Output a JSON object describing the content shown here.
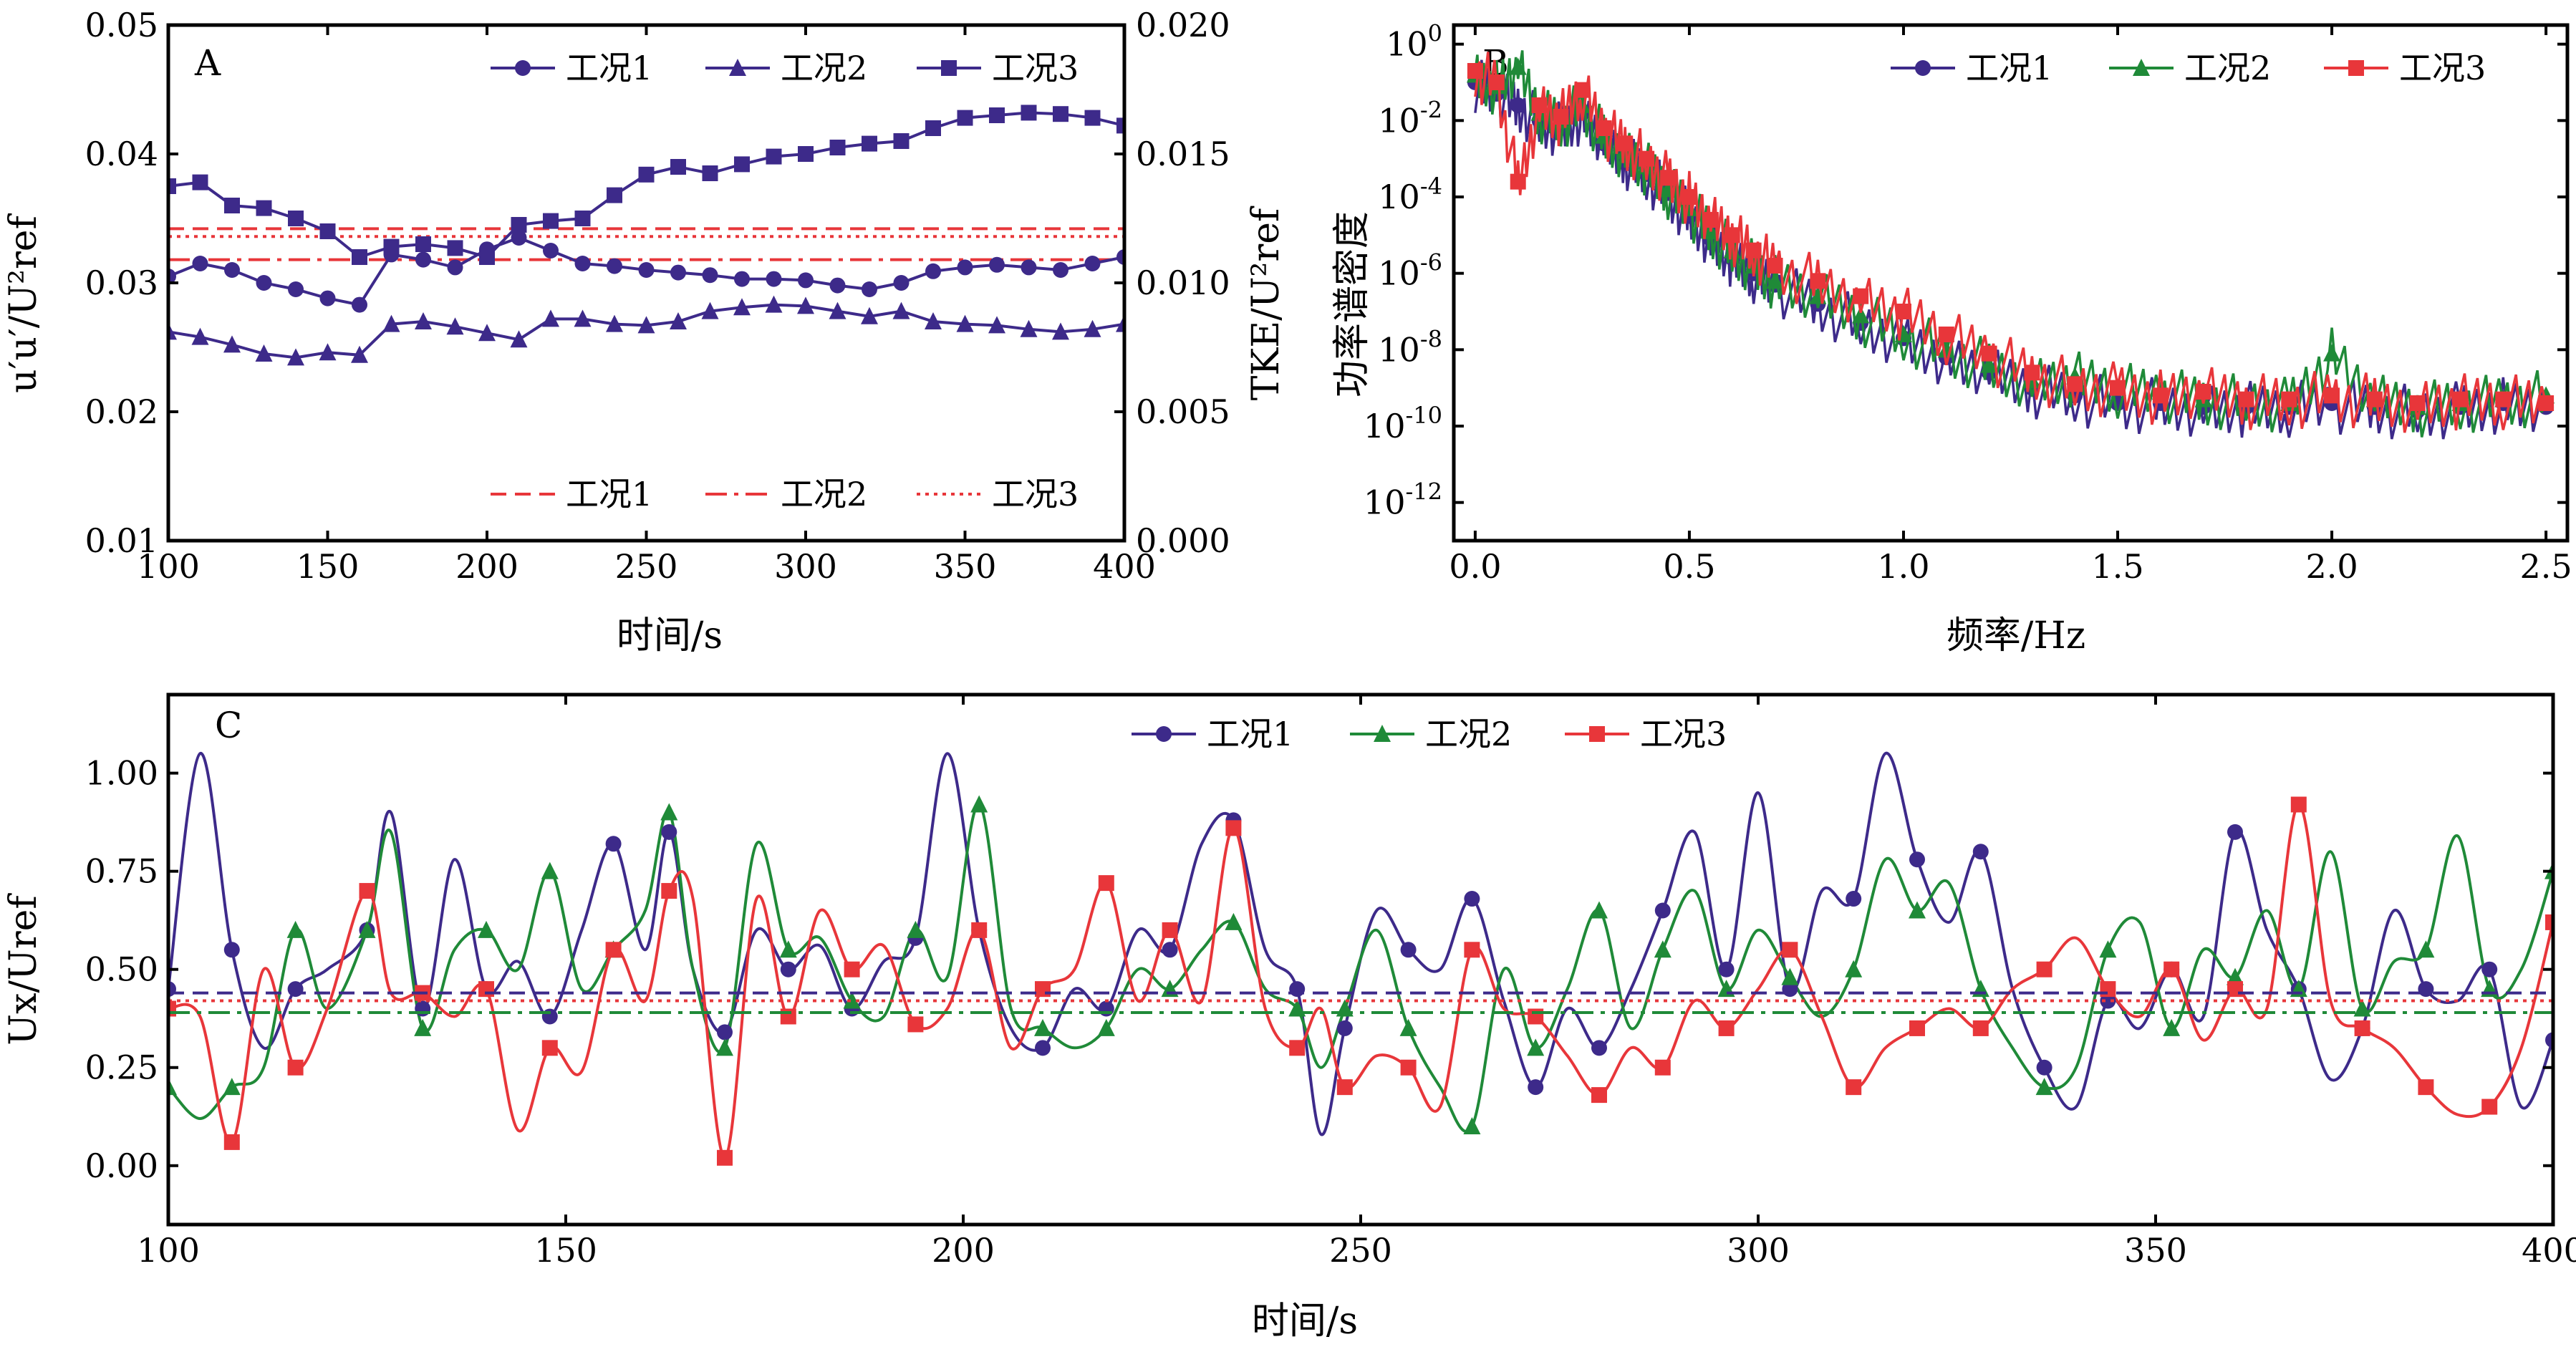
{
  "colors": {
    "case1": "#3d2a8a",
    "case2": "#1f8a38",
    "case3": "#e8363a",
    "ref": "#e8363a",
    "axis": "#000000"
  },
  "chart_data": [
    {
      "id": "A",
      "type": "line",
      "panel_letter": "A",
      "xlabel": "时间/s",
      "ylabel_left": "u′u′/U²ref",
      "ylabel_right": "TKE/U²ref",
      "xlim": [
        100,
        400
      ],
      "ylim_left": [
        0.01,
        0.05
      ],
      "ylim_right": [
        0.0,
        0.02
      ],
      "x_ticks": [
        "100",
        "150",
        "200",
        "250",
        "300",
        "350",
        "400"
      ],
      "y_left_ticks": [
        "0.01",
        "0.02",
        "0.03",
        "0.04",
        "0.05"
      ],
      "y_right_ticks": [
        "0.000",
        "0.005",
        "0.010",
        "0.015",
        "0.020"
      ],
      "legend_position": "top-right",
      "series": [
        {
          "name": "工况1",
          "marker": "circle",
          "axis": "left",
          "x": [
            100,
            110,
            120,
            130,
            140,
            150,
            160,
            170,
            180,
            190,
            200,
            210,
            220,
            230,
            240,
            250,
            260,
            270,
            280,
            290,
            300,
            310,
            320,
            330,
            340,
            350,
            360,
            370,
            380,
            390,
            400
          ],
          "y": [
            0.0305,
            0.0315,
            0.031,
            0.03,
            0.0295,
            0.0288,
            0.0283,
            0.0322,
            0.0318,
            0.0312,
            0.0326,
            0.0335,
            0.0325,
            0.0315,
            0.0313,
            0.031,
            0.0308,
            0.0306,
            0.0303,
            0.0303,
            0.0302,
            0.0298,
            0.0295,
            0.03,
            0.0309,
            0.0312,
            0.0314,
            0.0312,
            0.031,
            0.0315,
            0.032
          ]
        },
        {
          "name": "工况2",
          "marker": "triangle",
          "axis": "left",
          "x": [
            100,
            110,
            120,
            130,
            140,
            150,
            160,
            170,
            180,
            190,
            200,
            210,
            220,
            230,
            240,
            250,
            260,
            270,
            280,
            290,
            300,
            310,
            320,
            330,
            340,
            350,
            360,
            370,
            380,
            390,
            400
          ],
          "y": [
            0.0262,
            0.0258,
            0.0252,
            0.0245,
            0.0242,
            0.0246,
            0.0244,
            0.0268,
            0.027,
            0.0266,
            0.0261,
            0.0256,
            0.0272,
            0.0272,
            0.0268,
            0.0267,
            0.027,
            0.0278,
            0.0281,
            0.0283,
            0.0282,
            0.0278,
            0.0274,
            0.0278,
            0.027,
            0.0268,
            0.0267,
            0.0264,
            0.0262,
            0.0264,
            0.0268
          ]
        },
        {
          "name": "工况3",
          "marker": "square",
          "axis": "left",
          "x": [
            100,
            110,
            120,
            130,
            140,
            150,
            160,
            170,
            180,
            190,
            200,
            210,
            220,
            230,
            240,
            250,
            260,
            270,
            280,
            290,
            300,
            310,
            320,
            330,
            340,
            350,
            360,
            370,
            380,
            390,
            400
          ],
          "y": [
            0.0375,
            0.0378,
            0.036,
            0.0358,
            0.035,
            0.034,
            0.032,
            0.0328,
            0.033,
            0.0327,
            0.032,
            0.0345,
            0.0348,
            0.035,
            0.0368,
            0.0384,
            0.039,
            0.0385,
            0.0392,
            0.0398,
            0.04,
            0.0405,
            0.0408,
            0.041,
            0.042,
            0.0428,
            0.043,
            0.0432,
            0.0431,
            0.0428,
            0.0422
          ]
        }
      ],
      "ref_lines": [
        {
          "name": "工况1",
          "style": "dashed",
          "value_right": 0.0121
        },
        {
          "name": "工况2",
          "style": "dashdot",
          "value_right": 0.0109
        },
        {
          "name": "工况3",
          "style": "dotted",
          "value_right": 0.0118
        }
      ]
    },
    {
      "id": "B",
      "type": "line",
      "panel_letter": "B",
      "xlabel": "频率/Hz",
      "ylabel": "功率谱密度",
      "yscale": "log",
      "xlim": [
        -0.05,
        2.55
      ],
      "ylim_log10": [
        -13,
        0.5
      ],
      "x_ticks": [
        "0.0",
        "0.5",
        "1.0",
        "1.5",
        "2.0",
        "2.5"
      ],
      "y_tick_exponents": [
        "0",
        "-2",
        "-4",
        "-6",
        "-8",
        "-10",
        "-12"
      ],
      "legend_position": "top-right",
      "series": [
        {
          "name": "工况1",
          "marker": "circle",
          "x": [
            0.0,
            0.05,
            0.1,
            0.15,
            0.2,
            0.25,
            0.3,
            0.35,
            0.4,
            0.45,
            0.5,
            0.55,
            0.6,
            0.65,
            0.7,
            0.8,
            0.9,
            1.0,
            1.1,
            1.2,
            1.3,
            1.4,
            1.5,
            1.6,
            1.7,
            1.8,
            1.9,
            2.0,
            2.1,
            2.2,
            2.3,
            2.4,
            2.5
          ],
          "log_y": [
            -1,
            -1.3,
            -1.6,
            -2,
            -2.2,
            -1.8,
            -2.6,
            -3,
            -3.4,
            -3.9,
            -4.5,
            -5.1,
            -5.6,
            -6,
            -6.3,
            -6.8,
            -7.3,
            -7.7,
            -8.2,
            -8.6,
            -9.0,
            -9.2,
            -9.4,
            -9.4,
            -9.5,
            -9.5,
            -9.5,
            -9.4,
            -9.5,
            -9.6,
            -9.5,
            -9.4,
            -9.5
          ]
        },
        {
          "name": "工况2",
          "marker": "triangle",
          "x": [
            0.0,
            0.05,
            0.1,
            0.15,
            0.2,
            0.25,
            0.3,
            0.35,
            0.4,
            0.45,
            0.5,
            0.55,
            0.6,
            0.65,
            0.7,
            0.8,
            0.9,
            1.0,
            1.1,
            1.2,
            1.3,
            1.4,
            1.5,
            1.6,
            1.7,
            1.8,
            1.9,
            2.0,
            2.1,
            2.2,
            2.3,
            2.4,
            2.5
          ],
          "log_y": [
            -0.8,
            -1.1,
            -0.6,
            -1.8,
            -2.0,
            -1.6,
            -2.4,
            -2.8,
            -3.2,
            -3.8,
            -4.3,
            -4.9,
            -5.4,
            -5.8,
            -6.2,
            -6.6,
            -7.1,
            -7.6,
            -8.0,
            -8.4,
            -8.8,
            -8.7,
            -9.0,
            -9.1,
            -9.3,
            -9.3,
            -9.4,
            -8.1,
            -9.3,
            -9.5,
            -9.4,
            -9.3,
            -9.2
          ]
        },
        {
          "name": "工况3",
          "marker": "square",
          "x": [
            0.0,
            0.05,
            0.1,
            0.15,
            0.2,
            0.25,
            0.3,
            0.35,
            0.4,
            0.45,
            0.5,
            0.55,
            0.6,
            0.65,
            0.7,
            0.8,
            0.9,
            1.0,
            1.1,
            1.2,
            1.3,
            1.4,
            1.5,
            1.6,
            1.7,
            1.8,
            1.9,
            2.0,
            2.1,
            2.2,
            2.3,
            2.4,
            2.5
          ],
          "log_y": [
            -0.7,
            -1.0,
            -3.6,
            -1.6,
            -1.9,
            -1.2,
            -2.2,
            -2.6,
            -3.0,
            -3.5,
            -4.0,
            -4.6,
            -5.0,
            -5.4,
            -5.8,
            -6.2,
            -6.6,
            -7.0,
            -7.6,
            -8.1,
            -8.6,
            -8.9,
            -9.0,
            -9.2,
            -9.1,
            -9.3,
            -9.3,
            -9.2,
            -9.3,
            -9.4,
            -9.3,
            -9.3,
            -9.4
          ]
        }
      ]
    },
    {
      "id": "C",
      "type": "line",
      "panel_letter": "C",
      "xlabel": "时间/s",
      "ylabel": "Ux/Uref",
      "xlim": [
        100,
        400
      ],
      "ylim": [
        -0.15,
        1.2
      ],
      "x_ticks": [
        "100",
        "150",
        "200",
        "250",
        "300",
        "350",
        "400"
      ],
      "y_ticks": [
        "0.00",
        "0.25",
        "0.50",
        "0.75",
        "1.00"
      ],
      "legend_position": "top-center",
      "series": [
        {
          "name": "工况1",
          "marker": "circle",
          "x": [
            100,
            104,
            108,
            112,
            116,
            120,
            125,
            128,
            132,
            136,
            140,
            144,
            148,
            152,
            156,
            160,
            163,
            166,
            170,
            174,
            178,
            182,
            186,
            190,
            194,
            198,
            202,
            206,
            210,
            214,
            218,
            222,
            226,
            230,
            234,
            238,
            242,
            245,
            248,
            252,
            256,
            260,
            264,
            268,
            272,
            276,
            280,
            284,
            288,
            292,
            296,
            300,
            304,
            308,
            312,
            316,
            320,
            324,
            328,
            332,
            336,
            340,
            344,
            348,
            352,
            356,
            360,
            364,
            368,
            372,
            376,
            380,
            384,
            388,
            392,
            396,
            400
          ],
          "y": [
            0.45,
            1.05,
            0.55,
            0.3,
            0.45,
            0.5,
            0.6,
            0.9,
            0.4,
            0.78,
            0.45,
            0.52,
            0.38,
            0.6,
            0.82,
            0.55,
            0.85,
            0.5,
            0.34,
            0.6,
            0.5,
            0.56,
            0.4,
            0.52,
            0.58,
            1.05,
            0.6,
            0.35,
            0.3,
            0.45,
            0.4,
            0.6,
            0.55,
            0.82,
            0.88,
            0.55,
            0.45,
            0.08,
            0.35,
            0.65,
            0.55,
            0.5,
            0.68,
            0.42,
            0.2,
            0.4,
            0.3,
            0.45,
            0.65,
            0.85,
            0.5,
            0.95,
            0.45,
            0.7,
            0.68,
            1.05,
            0.78,
            0.62,
            0.8,
            0.45,
            0.25,
            0.15,
            0.42,
            0.35,
            0.5,
            0.38,
            0.85,
            0.6,
            0.45,
            0.22,
            0.35,
            0.65,
            0.45,
            0.42,
            0.5,
            0.15,
            0.32
          ]
        },
        {
          "name": "工况2",
          "marker": "triangle",
          "x": [
            100,
            104,
            108,
            112,
            116,
            120,
            125,
            128,
            132,
            136,
            140,
            144,
            148,
            152,
            156,
            160,
            163,
            166,
            170,
            174,
            178,
            182,
            186,
            190,
            194,
            198,
            202,
            206,
            210,
            214,
            218,
            222,
            226,
            230,
            234,
            238,
            242,
            245,
            248,
            252,
            256,
            260,
            264,
            268,
            272,
            276,
            280,
            284,
            288,
            292,
            296,
            300,
            304,
            308,
            312,
            316,
            320,
            324,
            328,
            332,
            336,
            340,
            344,
            348,
            352,
            356,
            360,
            364,
            368,
            372,
            376,
            380,
            384,
            388,
            392,
            396,
            400
          ],
          "y": [
            0.2,
            0.12,
            0.2,
            0.25,
            0.6,
            0.4,
            0.6,
            0.85,
            0.35,
            0.55,
            0.6,
            0.5,
            0.75,
            0.45,
            0.55,
            0.65,
            0.9,
            0.5,
            0.3,
            0.82,
            0.55,
            0.58,
            0.42,
            0.38,
            0.6,
            0.48,
            0.92,
            0.4,
            0.35,
            0.3,
            0.35,
            0.5,
            0.45,
            0.55,
            0.62,
            0.45,
            0.4,
            0.25,
            0.4,
            0.6,
            0.35,
            0.2,
            0.1,
            0.5,
            0.3,
            0.45,
            0.65,
            0.35,
            0.55,
            0.7,
            0.45,
            0.6,
            0.48,
            0.38,
            0.5,
            0.78,
            0.65,
            0.72,
            0.45,
            0.3,
            0.2,
            0.25,
            0.55,
            0.62,
            0.35,
            0.55,
            0.48,
            0.65,
            0.45,
            0.8,
            0.4,
            0.52,
            0.55,
            0.84,
            0.45,
            0.5,
            0.75
          ]
        },
        {
          "name": "工况3",
          "marker": "square",
          "x": [
            100,
            104,
            108,
            112,
            116,
            120,
            125,
            128,
            132,
            136,
            140,
            144,
            148,
            152,
            156,
            160,
            163,
            166,
            170,
            174,
            178,
            182,
            186,
            190,
            194,
            198,
            202,
            206,
            210,
            214,
            218,
            222,
            226,
            230,
            234,
            238,
            242,
            245,
            248,
            252,
            256,
            260,
            264,
            268,
            272,
            276,
            280,
            284,
            288,
            292,
            296,
            300,
            304,
            308,
            312,
            316,
            320,
            324,
            328,
            332,
            336,
            340,
            344,
            348,
            352,
            356,
            360,
            364,
            368,
            372,
            376,
            380,
            384,
            388,
            392,
            396,
            400
          ],
          "y": [
            0.4,
            0.38,
            0.06,
            0.5,
            0.25,
            0.4,
            0.7,
            0.44,
            0.44,
            0.38,
            0.45,
            0.09,
            0.3,
            0.24,
            0.55,
            0.42,
            0.7,
            0.68,
            0.02,
            0.68,
            0.38,
            0.65,
            0.5,
            0.56,
            0.36,
            0.4,
            0.6,
            0.3,
            0.45,
            0.5,
            0.72,
            0.42,
            0.6,
            0.42,
            0.86,
            0.4,
            0.3,
            0.4,
            0.2,
            0.28,
            0.25,
            0.15,
            0.55,
            0.4,
            0.38,
            0.28,
            0.18,
            0.3,
            0.25,
            0.42,
            0.35,
            0.45,
            0.55,
            0.38,
            0.2,
            0.3,
            0.35,
            0.4,
            0.35,
            0.45,
            0.5,
            0.58,
            0.45,
            0.38,
            0.5,
            0.32,
            0.45,
            0.4,
            0.92,
            0.42,
            0.35,
            0.3,
            0.2,
            0.13,
            0.15,
            0.3,
            0.62
          ]
        }
      ],
      "ref_lines": [
        {
          "name": "工况1",
          "style": "dashed",
          "value": 0.44
        },
        {
          "name": "工况2",
          "style": "dashdot",
          "value": 0.39
        },
        {
          "name": "工况3",
          "style": "dotted",
          "value": 0.42
        }
      ]
    }
  ]
}
